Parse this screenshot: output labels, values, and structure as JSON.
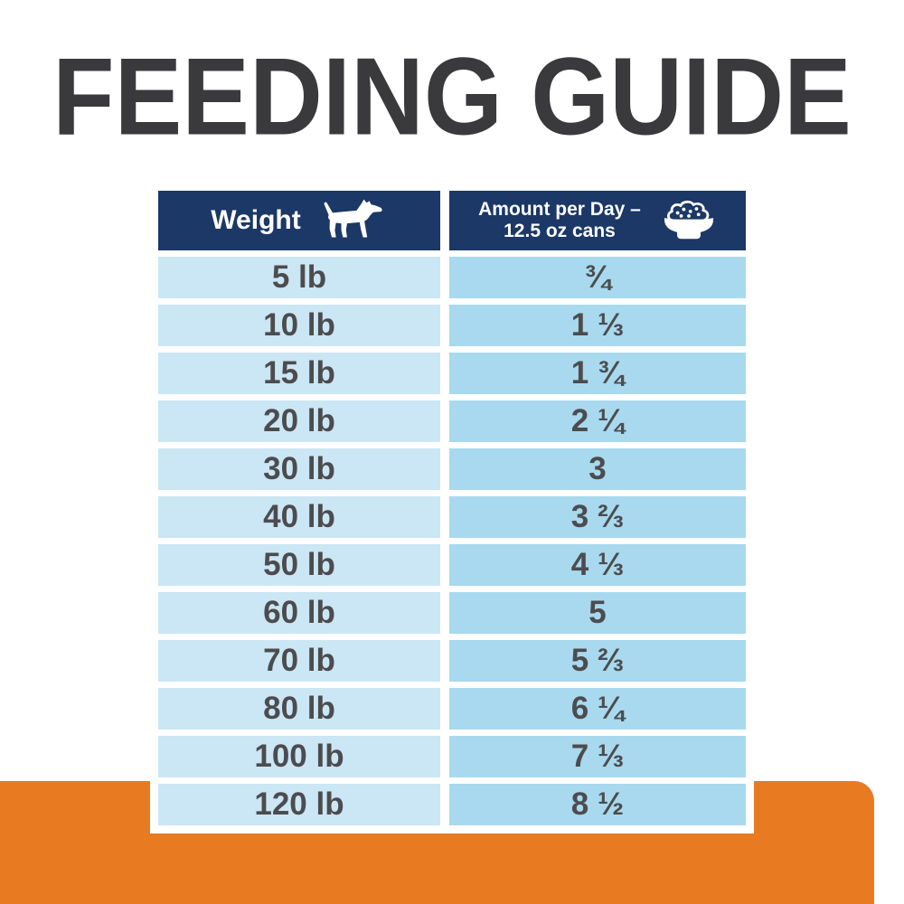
{
  "title": "FEEDING GUIDE",
  "header": {
    "weight_label": "Weight",
    "amount_label_line1": "Amount per Day –",
    "amount_label_line2": "12.5 oz cans",
    "weight_icon": "dog-icon",
    "amount_icon": "food-bowl-icon"
  },
  "rows": [
    {
      "weight": "5 lb",
      "amount": "¾"
    },
    {
      "weight": "10 lb",
      "amount": "1 ⅓"
    },
    {
      "weight": "15 lb",
      "amount": "1 ¾"
    },
    {
      "weight": "20 lb",
      "amount": "2 ¼"
    },
    {
      "weight": "30 lb",
      "amount": "3"
    },
    {
      "weight": "40 lb",
      "amount": "3 ⅔"
    },
    {
      "weight": "50 lb",
      "amount": "4 ⅓"
    },
    {
      "weight": "60 lb",
      "amount": "5"
    },
    {
      "weight": "70 lb",
      "amount": "5 ⅔"
    },
    {
      "weight": "80 lb",
      "amount": "6 ¼"
    },
    {
      "weight": "100 lb",
      "amount": "7 ⅓"
    },
    {
      "weight": "120 lb",
      "amount": "8 ½"
    }
  ],
  "colors": {
    "header_navy": "#1b3866",
    "row_left_blue": "#cbe6f5",
    "row_right_blue": "#a8d9ef",
    "accent_orange": "#e87b22",
    "title_text": "#3a3a3c",
    "cell_text": "#4c4c4e"
  },
  "chart_data": {
    "type": "table",
    "title": "FEEDING GUIDE",
    "columns": [
      "Weight",
      "Amount per Day – 12.5 oz cans"
    ],
    "rows": [
      [
        "5 lb",
        "¾"
      ],
      [
        "10 lb",
        "1 ⅓"
      ],
      [
        "15 lb",
        "1 ¾"
      ],
      [
        "20 lb",
        "2 ¼"
      ],
      [
        "30 lb",
        "3"
      ],
      [
        "40 lb",
        "3 ⅔"
      ],
      [
        "50 lb",
        "4 ⅓"
      ],
      [
        "60 lb",
        "5"
      ],
      [
        "70 lb",
        "5 ⅔"
      ],
      [
        "80 lb",
        "6 ¼"
      ],
      [
        "100 lb",
        "7 ⅓"
      ],
      [
        "120 lb",
        "8 ½"
      ]
    ],
    "weights_lb": [
      5,
      10,
      15,
      20,
      30,
      40,
      50,
      60,
      70,
      80,
      100,
      120
    ],
    "cans_per_day": [
      0.75,
      1.33,
      1.75,
      2.25,
      3,
      3.67,
      4.33,
      5,
      5.67,
      6.25,
      7.33,
      8.5
    ],
    "legend_position": "none",
    "grid": false
  }
}
